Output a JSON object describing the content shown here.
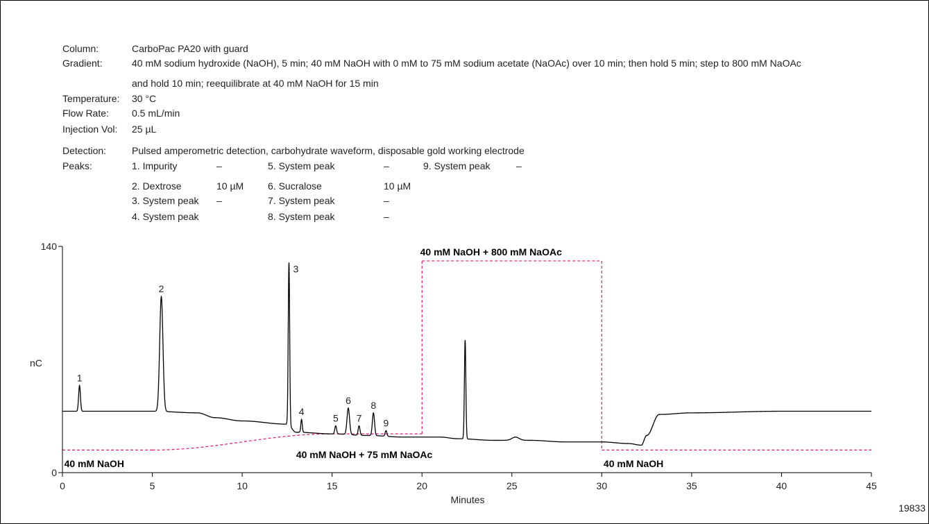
{
  "conditions": {
    "column_label": "Column:",
    "column_value": "CarboPac PA20 with guard",
    "gradient_label": "Gradient:",
    "gradient_line1": "40 mM sodium hydroxide (NaOH), 5 min; 40 mM NaOH with 0 mM to 75 mM sodium acetate (NaOAc) over 10 min; then hold 5 min; step to 800 mM NaOAc",
    "gradient_line2": "and hold 10 min; reequilibrate at 40 mM NaOH for 15 min",
    "temperature_label": "Temperature:",
    "temperature_value": "30 °C",
    "flow_label": "Flow Rate:",
    "flow_value": "0.5 mL/min",
    "injection_label": "Injection Vol:",
    "injection_value": "25 µL",
    "detection_label": "Detection:",
    "detection_value": "Pulsed amperometric detection, carbohydrate waveform, disposable gold working electrode",
    "peaks_label": "Peaks:",
    "peaks": [
      {
        "name": "1. Impurity",
        "conc": "–"
      },
      {
        "name": "2. Dextrose",
        "conc": "10 µM"
      },
      {
        "name": "3. System peak",
        "conc": "–"
      },
      {
        "name": "4. System peak",
        "conc": ""
      },
      {
        "name": "5. System peak",
        "conc": "–"
      },
      {
        "name": "6. Sucralose",
        "conc": "10 µM"
      },
      {
        "name": "7. System peak",
        "conc": "–"
      },
      {
        "name": "8. System peak",
        "conc": "–"
      },
      {
        "name": "9. System peak",
        "conc": "–"
      }
    ]
  },
  "figure_id": "19833",
  "colors": {
    "trace": "#000000",
    "gradient": "#e0177a",
    "axis": "#000000"
  },
  "chart_data": {
    "type": "line",
    "title": "",
    "xlabel": "Minutes",
    "ylabel": "nC",
    "xlim": [
      0,
      45
    ],
    "ylim": [
      0,
      140
    ],
    "xticks": [
      0,
      5,
      10,
      15,
      20,
      25,
      30,
      35,
      40,
      45
    ],
    "yticks": [
      0,
      140
    ],
    "baseline_points": [
      [
        0,
        38
      ],
      [
        5,
        38
      ],
      [
        7.5,
        37
      ],
      [
        8.5,
        34
      ],
      [
        10,
        32
      ],
      [
        12.5,
        30
      ],
      [
        13,
        25
      ],
      [
        15,
        24
      ],
      [
        17,
        23
      ],
      [
        19,
        22
      ],
      [
        21,
        22
      ],
      [
        22,
        21
      ],
      [
        24,
        20
      ],
      [
        26,
        20
      ],
      [
        28,
        19
      ],
      [
        30,
        19
      ],
      [
        31.5,
        18
      ],
      [
        32.2,
        17
      ],
      [
        32.5,
        23
      ],
      [
        33.2,
        36
      ],
      [
        35,
        37
      ],
      [
        40,
        38
      ],
      [
        45,
        38
      ]
    ],
    "peaks": [
      {
        "label": "1",
        "x": 0.95,
        "height": 54,
        "width": 0.05
      },
      {
        "label": "2",
        "x": 5.5,
        "height": 109,
        "width": 0.09
      },
      {
        "label": "3",
        "x": 12.6,
        "height": 130,
        "width": 0.04
      },
      {
        "label": "4",
        "x": 13.3,
        "height": 33,
        "width": 0.04
      },
      {
        "label": "5",
        "x": 15.2,
        "height": 29,
        "width": 0.05
      },
      {
        "label": "6",
        "x": 15.9,
        "height": 40,
        "width": 0.07
      },
      {
        "label": "7",
        "x": 16.5,
        "height": 29,
        "width": 0.05
      },
      {
        "label": "8",
        "x": 17.3,
        "height": 37,
        "width": 0.06
      },
      {
        "label": "9",
        "x": 18.0,
        "height": 26,
        "width": 0.05
      },
      {
        "label": "",
        "x": 22.4,
        "height": 82,
        "width": 0.04
      },
      {
        "label": "",
        "x": 25.2,
        "height": 22,
        "width": 0.2
      }
    ],
    "gradient_profile": [
      [
        0,
        14
      ],
      [
        5,
        14
      ],
      [
        15,
        24
      ],
      [
        20,
        24
      ],
      [
        20,
        131
      ],
      [
        30,
        131
      ],
      [
        30,
        14
      ],
      [
        45,
        14
      ]
    ],
    "gradient_labels": [
      {
        "text": "40 mM NaOH",
        "x": 0.1,
        "y": 3.5
      },
      {
        "text": "40 mM NaOH + 75 mM NaOAc",
        "x": 13,
        "y": 9
      },
      {
        "text": "40 mM NaOH + 800 mM NaOAc",
        "x": 19.9,
        "y": 134.5
      },
      {
        "text": "40 mM NaOH",
        "x": 30.1,
        "y": 3.5
      }
    ]
  }
}
